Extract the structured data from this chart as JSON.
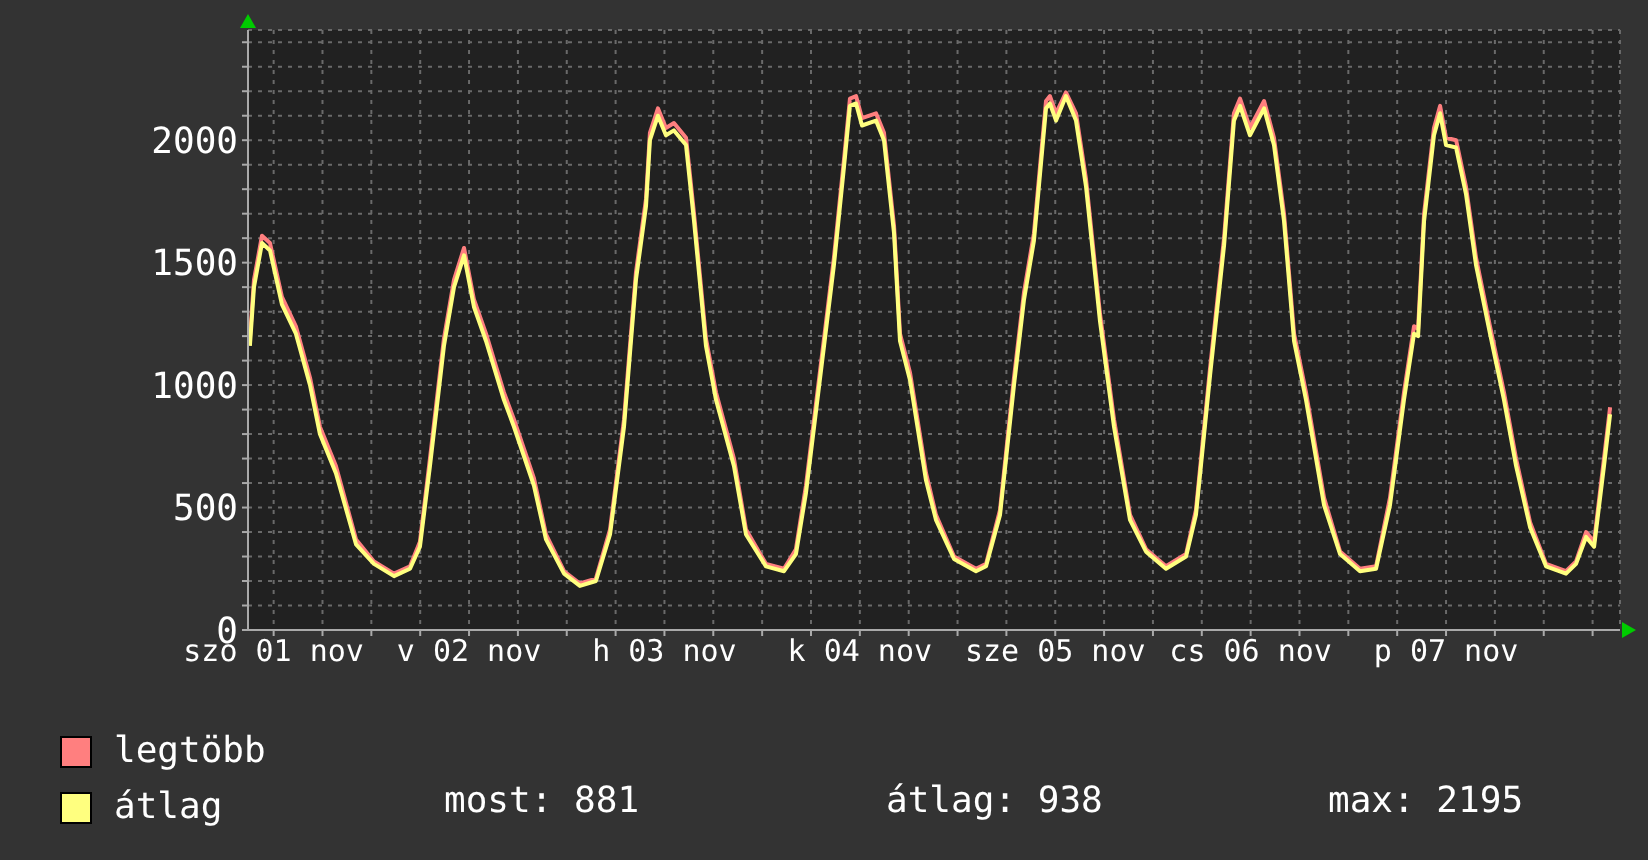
{
  "chart_data": {
    "type": "line",
    "x": [
      "--11-01T09:05",
      "--11-01T09:35",
      "--11-01T10:34",
      "--11-01T11:33",
      "--11-01T13:01",
      "--11-01T14:44",
      "--11-01T16:28",
      "--11-01T17:41",
      "--11-01T19:39",
      "--11-01T22:07",
      "--11-02T00:19",
      "--11-02T02:47",
      "--11-02T04:45",
      "--11-02T05:58",
      "--11-02T07:12",
      "--11-02T08:55",
      "--11-02T10:09",
      "--11-02T11:23",
      "--11-02T12:36",
      "--11-02T14:05",
      "--11-02T16:17",
      "--11-02T17:31",
      "--11-02T19:58",
      "--11-02T21:27",
      "--11-02T23:40",
      "--11-03T01:37",
      "--11-03T03:35",
      "--11-03T05:19",
      "--11-03T07:02",
      "--11-03T08:30",
      "--11-03T09:44",
      "--11-03T10:13",
      "--11-03T11:12",
      "--11-03T12:11",
      "--11-03T13:10",
      "--11-03T14:39",
      "--11-03T15:38",
      "--11-03T17:06",
      "--11-03T18:20",
      "--11-03T20:32",
      "--11-03T22:01",
      "--11-04T00:28",
      "--11-04T02:41",
      "--11-04T04:09",
      "--11-04T05:23",
      "--11-04T07:36",
      "--11-04T08:49",
      "--11-04T10:03",
      "--11-04T10:47",
      "--11-04T11:32",
      "--11-04T12:16",
      "--11-04T13:59",
      "--11-04T14:58",
      "--11-04T16:12",
      "--11-04T16:56",
      "--11-04T18:10",
      "--11-04T20:08",
      "--11-04T21:21",
      "--11-04T23:34",
      "--11-05T02:16",
      "--11-05T03:30",
      "--11-05T05:13",
      "--11-05T06:56",
      "--11-05T08:10",
      "--11-05T09:23",
      "--11-05T10:52",
      "--11-05T11:21",
      "--11-05T12:06",
      "--11-05T13:19",
      "--11-05T14:33",
      "--11-05T15:47",
      "--11-05T17:30",
      "--11-05T19:13",
      "--11-05T21:11",
      "--11-05T23:09",
      "--11-06T01:36",
      "--11-06T04:04",
      "--11-06T05:17",
      "--11-06T07:01",
      "--11-06T08:44",
      "--11-06T09:57",
      "--11-06T10:42",
      "--11-06T11:55",
      "--11-06T13:39",
      "--11-06T14:52",
      "--11-06T16:06",
      "--11-06T17:20",
      "--11-06T18:48",
      "--11-06T21:01",
      "--11-06T22:59",
      "--11-07T01:26",
      "--11-07T03:24",
      "--11-07T05:07",
      "--11-07T06:50",
      "--11-07T08:04",
      "--11-07T08:34",
      "--11-07T09:18",
      "--11-07T10:31",
      "--11-07T11:16",
      "--11-07T12:00",
      "--11-07T13:14",
      "--11-07T14:27",
      "--11-07T15:41",
      "--11-07T17:24",
      "--11-07T19:07",
      "--11-07T20:36",
      "--11-07T22:19",
      "--11-08T00:17",
      "--11-08T02:44",
      "--11-08T03:58",
      "--11-08T05:12",
      "--11-08T06:11",
      "--11-08T07:24",
      "--11-08T08:09"
    ],
    "series": [
      {
        "name": "legtöbb",
        "color": "#ff7f7f",
        "values": [
          1190,
          1430,
          1610,
          1580,
          1360,
          1240,
          1030,
          830,
          670,
          370,
          280,
          230,
          260,
          360,
          700,
          1190,
          1430,
          1560,
          1350,
          1210,
          970,
          860,
          620,
          390,
          240,
          190,
          210,
          410,
          860,
          1460,
          1760,
          2030,
          2130,
          2050,
          2070,
          2010,
          1700,
          1190,
          970,
          700,
          410,
          270,
          250,
          330,
          590,
          1190,
          1520,
          1920,
          2170,
          2180,
          2090,
          2110,
          2030,
          1650,
          1210,
          1050,
          640,
          470,
          300,
          250,
          270,
          490,
          1030,
          1380,
          1620,
          2160,
          2180,
          2110,
          2195,
          2110,
          1840,
          1290,
          860,
          470,
          330,
          260,
          310,
          490,
          1070,
          1600,
          2110,
          2170,
          2050,
          2160,
          2010,
          1700,
          1210,
          970,
          540,
          320,
          250,
          260,
          540,
          970,
          1240,
          1230,
          1700,
          2050,
          2140,
          2010,
          2000,
          1810,
          1520,
          1240,
          970,
          700,
          440,
          270,
          240,
          280,
          400,
          360,
          700,
          910
        ]
      },
      {
        "name": "átlag",
        "color": "#ffff7f",
        "values": [
          1160,
          1400,
          1580,
          1550,
          1330,
          1210,
          1000,
          800,
          640,
          350,
          270,
          220,
          250,
          340,
          670,
          1160,
          1400,
          1530,
          1320,
          1180,
          940,
          830,
          590,
          370,
          230,
          180,
          200,
          390,
          830,
          1430,
          1730,
          2000,
          2100,
          2020,
          2040,
          1980,
          1670,
          1160,
          940,
          670,
          390,
          260,
          240,
          310,
          560,
          1160,
          1490,
          1890,
          2140,
          2150,
          2060,
          2080,
          2000,
          1620,
          1180,
          1020,
          610,
          450,
          290,
          240,
          260,
          470,
          1000,
          1350,
          1590,
          2130,
          2150,
          2080,
          2180,
          2080,
          1810,
          1260,
          830,
          450,
          320,
          250,
          300,
          470,
          1040,
          1570,
          2080,
          2140,
          2020,
          2130,
          1980,
          1670,
          1180,
          940,
          510,
          310,
          240,
          250,
          510,
          940,
          1210,
          1200,
          1670,
          2020,
          2110,
          1980,
          1970,
          1780,
          1490,
          1210,
          940,
          670,
          420,
          260,
          230,
          270,
          380,
          340,
          670,
          881
        ]
      }
    ],
    "xlim": [
      "--11-01T08:51",
      "--11-08T09:22"
    ],
    "xticks": [
      {
        "value": "--11-01T12:00",
        "label": "szo 01 nov"
      },
      {
        "value": "--11-01T18:00",
        "label": null
      },
      {
        "value": "--11-02T00:00",
        "label": null
      },
      {
        "value": "--11-02T06:00",
        "label": null
      },
      {
        "value": "--11-02T12:00",
        "label": "v 02 nov"
      },
      {
        "value": "--11-02T18:00",
        "label": null
      },
      {
        "value": "--11-03T00:00",
        "label": null
      },
      {
        "value": "--11-03T06:00",
        "label": null
      },
      {
        "value": "--11-03T12:00",
        "label": "h 03 nov"
      },
      {
        "value": "--11-03T18:00",
        "label": null
      },
      {
        "value": "--11-04T00:00",
        "label": null
      },
      {
        "value": "--11-04T06:00",
        "label": null
      },
      {
        "value": "--11-04T12:00",
        "label": "k 04 nov"
      },
      {
        "value": "--11-04T18:00",
        "label": null
      },
      {
        "value": "--11-05T00:00",
        "label": null
      },
      {
        "value": "--11-05T06:00",
        "label": null
      },
      {
        "value": "--11-05T12:00",
        "label": "sze 05 nov"
      },
      {
        "value": "--11-05T18:00",
        "label": null
      },
      {
        "value": "--11-06T00:00",
        "label": null
      },
      {
        "value": "--11-06T06:00",
        "label": null
      },
      {
        "value": "--11-06T12:00",
        "label": "cs 06 nov"
      },
      {
        "value": "--11-06T18:00",
        "label": null
      },
      {
        "value": "--11-07T00:00",
        "label": null
      },
      {
        "value": "--11-07T06:00",
        "label": null
      },
      {
        "value": "--11-07T12:00",
        "label": "p 07 nov"
      },
      {
        "value": "--11-07T18:00",
        "label": null
      },
      {
        "value": "--11-08T00:00",
        "label": null
      },
      {
        "value": "--11-08T06:00",
        "label": null
      }
    ],
    "ylim": [
      0,
      2450
    ],
    "yticks": [
      0,
      {
        "value": 100,
        "label": null
      },
      {
        "value": 200,
        "label": null
      },
      {
        "value": 300,
        "label": null
      },
      {
        "value": 400,
        "label": null
      },
      500,
      {
        "value": 600,
        "label": null
      },
      {
        "value": 700,
        "label": null
      },
      {
        "value": 800,
        "label": null
      },
      {
        "value": 900,
        "label": null
      },
      1000,
      {
        "value": 1100,
        "label": null
      },
      {
        "value": 1200,
        "label": null
      },
      {
        "value": 1300,
        "label": null
      },
      {
        "value": 1400,
        "label": null
      },
      1500,
      {
        "value": 1600,
        "label": null
      },
      {
        "value": 1700,
        "label": null
      },
      {
        "value": 1800,
        "label": null
      },
      {
        "value": 1900,
        "label": null
      },
      2000,
      {
        "value": 2100,
        "label": null
      },
      {
        "value": 2200,
        "label": null
      },
      {
        "value": 2300,
        "label": null
      },
      {
        "value": 2400,
        "label": null
      }
    ],
    "grid": true,
    "legend": "bottom left",
    "marker": "none",
    "line_style": "solid",
    "annotations": [
      "most: 881",
      "átlag: 938",
      "max: 2195"
    ]
  }
}
